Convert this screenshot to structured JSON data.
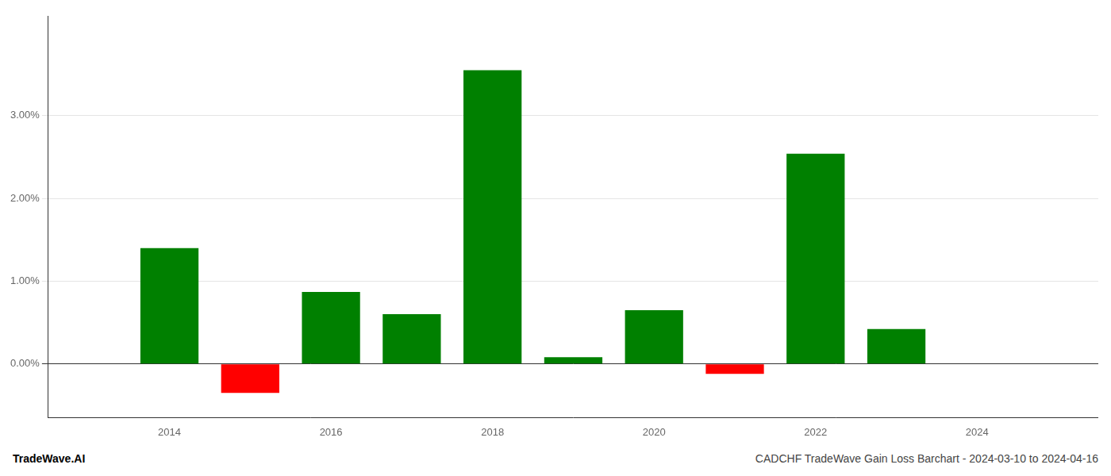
{
  "chart_data": {
    "type": "bar",
    "title": "CADCHF TradeWave Gain Loss Barchart - 2024-03-10 to 2024-04-16",
    "annotations": [
      "TradeWave.AI"
    ],
    "x": [
      2014,
      2015,
      2016,
      2017,
      2018,
      2019,
      2020,
      2021,
      2022,
      2023
    ],
    "values": [
      0.014,
      -0.0035,
      0.0087,
      0.006,
      0.0355,
      0.0008,
      0.0065,
      -0.0012,
      0.0254,
      0.0042
    ],
    "colors": [
      "#008000",
      "#ff0000",
      "#008000",
      "#008000",
      "#008000",
      "#008000",
      "#008000",
      "#ff0000",
      "#008000",
      "#008000"
    ],
    "xlim": [
      2012.5,
      2025.5
    ],
    "xticks": [
      2014,
      2016,
      2018,
      2020,
      2022,
      2024
    ],
    "ylim": [
      -0.0065,
      0.042
    ],
    "yticks": [
      {
        "value": 0,
        "label": "0.00%"
      },
      {
        "value": 0.01,
        "label": "1.00%"
      },
      {
        "value": 0.02,
        "label": "2.00%"
      },
      {
        "value": 0.03,
        "label": "3.00%"
      }
    ],
    "grid": true
  }
}
